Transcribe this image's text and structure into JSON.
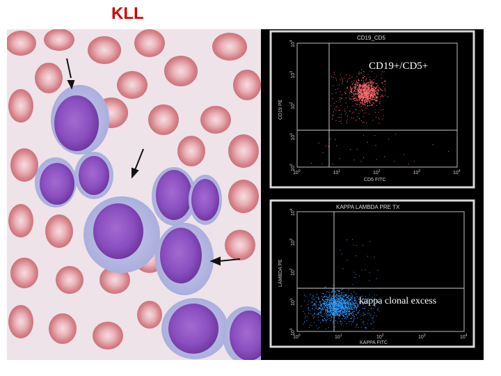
{
  "slide": {
    "title": "KLL",
    "title_color": "#d40000"
  },
  "smear": {
    "icon": "blood-smear-micrograph",
    "arrows": [
      "arrow-down-left",
      "arrow-down-left-2",
      "arrow-left"
    ]
  },
  "plots": [
    {
      "header": "CD19_CD5",
      "ylabel": "CD19 PE",
      "xlabel": "CD5 FITC",
      "annotation": "CD19+/CD5+",
      "dot_color": "#ff6a70",
      "x_ticks": [
        "10",
        "10",
        "10",
        "10",
        "10"
      ],
      "x_exp": [
        "0",
        "1",
        "2",
        "3",
        "4"
      ],
      "y_ticks": [
        "10",
        "10",
        "10",
        "10",
        "10"
      ],
      "y_exp": [
        "0",
        "1",
        "2",
        "3",
        "4"
      ]
    },
    {
      "header": "KAPPA LAMBDA PRE TX",
      "ylabel": "LAMBDA PE",
      "xlabel": "KAPPA FITC",
      "annotation": "kappa clonal excess",
      "dot_color": "#2f9bff",
      "x_ticks": [
        "10",
        "10",
        "10",
        "10",
        "10"
      ],
      "x_exp": [
        "0",
        "1",
        "2",
        "3",
        "4"
      ],
      "y_ticks": [
        "10",
        "10",
        "10",
        "10",
        "10"
      ],
      "y_exp": [
        "0",
        "1",
        "2",
        "3",
        "4"
      ]
    }
  ]
}
